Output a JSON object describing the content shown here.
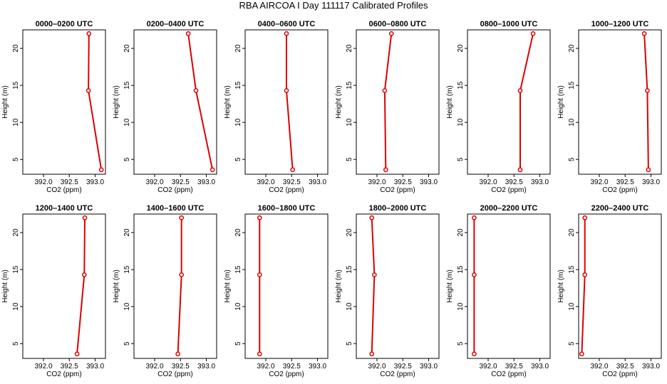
{
  "figure": {
    "title": "RBA AIRCOA I  Day 111117  Calibrated Profiles"
  },
  "chart_data": [
    {
      "type": "line",
      "title": "0000–0200 UTC",
      "xlabel": "CO2 (ppm)",
      "ylabel": "Height (m)",
      "xlim": [
        391.6,
        393.2
      ],
      "ylim": [
        3,
        22.5
      ],
      "xticks": [
        "392.0",
        "392.5",
        "393.0"
      ],
      "yticks": [
        "5",
        "10",
        "15",
        "20"
      ],
      "x": [
        392.88,
        392.87,
        393.12
      ],
      "y": [
        22,
        14.3,
        3.6
      ],
      "color": "#dd0000"
    },
    {
      "type": "line",
      "title": "0200–0400 UTC",
      "xlabel": "CO2 (ppm)",
      "ylabel": "Height (m)",
      "xlim": [
        391.6,
        393.2
      ],
      "ylim": [
        3,
        22.5
      ],
      "xticks": [
        "392.0",
        "392.5",
        "393.0"
      ],
      "yticks": [
        "5",
        "10",
        "15",
        "20"
      ],
      "x": [
        392.65,
        392.8,
        393.12
      ],
      "y": [
        22,
        14.3,
        3.6
      ],
      "color": "#dd0000"
    },
    {
      "type": "line",
      "title": "0400–0600 UTC",
      "xlabel": "CO2 (ppm)",
      "ylabel": "Height (m)",
      "xlim": [
        391.6,
        393.2
      ],
      "ylim": [
        3,
        22.5
      ],
      "xticks": [
        "392.0",
        "392.5",
        "393.0"
      ],
      "yticks": [
        "5",
        "10",
        "15",
        "20"
      ],
      "x": [
        392.4,
        392.4,
        392.52
      ],
      "y": [
        22,
        14.3,
        3.6
      ],
      "color": "#dd0000"
    },
    {
      "type": "line",
      "title": "0600–0800 UTC",
      "xlabel": "CO2 (ppm)",
      "ylabel": "Height (m)",
      "xlim": [
        391.6,
        393.2
      ],
      "ylim": [
        3,
        22.5
      ],
      "xticks": [
        "392.0",
        "392.5",
        "393.0"
      ],
      "yticks": [
        "5",
        "10",
        "15",
        "20"
      ],
      "x": [
        392.28,
        392.15,
        392.17
      ],
      "y": [
        22,
        14.3,
        3.6
      ],
      "color": "#dd0000"
    },
    {
      "type": "line",
      "title": "0800–1000 UTC",
      "xlabel": "CO2 (ppm)",
      "ylabel": "Height (m)",
      "xlim": [
        391.6,
        393.2
      ],
      "ylim": [
        3,
        22.5
      ],
      "xticks": [
        "392.0",
        "392.5",
        "393.0"
      ],
      "yticks": [
        "5",
        "10",
        "15",
        "20"
      ],
      "x": [
        392.87,
        392.62,
        392.62
      ],
      "y": [
        22,
        14.3,
        3.6
      ],
      "color": "#dd0000"
    },
    {
      "type": "line",
      "title": "1000–1200 UTC",
      "xlabel": "CO2 (ppm)",
      "ylabel": "Height (m)",
      "xlim": [
        391.6,
        393.2
      ],
      "ylim": [
        3,
        22.5
      ],
      "xticks": [
        "392.0",
        "392.5",
        "393.0"
      ],
      "yticks": [
        "5",
        "10",
        "15",
        "20"
      ],
      "x": [
        392.87,
        392.93,
        392.95
      ],
      "y": [
        22,
        14.3,
        3.6
      ],
      "color": "#dd0000"
    },
    {
      "type": "line",
      "title": "1200–1400 UTC",
      "xlabel": "CO2 (ppm)",
      "ylabel": "Height (m)",
      "xlim": [
        391.6,
        393.2
      ],
      "ylim": [
        3,
        22.5
      ],
      "xticks": [
        "392.0",
        "392.5",
        "393.0"
      ],
      "yticks": [
        "5",
        "10",
        "15",
        "20"
      ],
      "x": [
        392.8,
        392.79,
        392.65
      ],
      "y": [
        22,
        14.3,
        3.6
      ],
      "color": "#dd0000"
    },
    {
      "type": "line",
      "title": "1400–1600 UTC",
      "xlabel": "CO2 (ppm)",
      "ylabel": "Height (m)",
      "xlim": [
        391.6,
        393.2
      ],
      "ylim": [
        3,
        22.5
      ],
      "xticks": [
        "392.0",
        "392.5",
        "393.0"
      ],
      "yticks": [
        "5",
        "10",
        "15",
        "20"
      ],
      "x": [
        392.52,
        392.52,
        392.45
      ],
      "y": [
        22,
        14.3,
        3.6
      ],
      "color": "#dd0000"
    },
    {
      "type": "line",
      "title": "1600–1800 UTC",
      "xlabel": "CO2 (ppm)",
      "ylabel": "Height (m)",
      "xlim": [
        391.6,
        393.2
      ],
      "ylim": [
        3,
        22.5
      ],
      "xticks": [
        "392.0",
        "392.5",
        "393.0"
      ],
      "yticks": [
        "5",
        "10",
        "15",
        "20"
      ],
      "x": [
        391.88,
        391.88,
        391.88
      ],
      "y": [
        22,
        14.3,
        3.6
      ],
      "color": "#dd0000"
    },
    {
      "type": "line",
      "title": "1800–2000 UTC",
      "xlabel": "CO2 (ppm)",
      "ylabel": "Height (m)",
      "xlim": [
        391.6,
        393.2
      ],
      "ylim": [
        3,
        22.5
      ],
      "xticks": [
        "392.0",
        "392.5",
        "393.0"
      ],
      "yticks": [
        "5",
        "10",
        "15",
        "20"
      ],
      "x": [
        391.9,
        391.95,
        391.9
      ],
      "y": [
        22,
        14.3,
        3.6
      ],
      "color": "#dd0000"
    },
    {
      "type": "line",
      "title": "2000–2200 UTC",
      "xlabel": "CO2 (ppm)",
      "ylabel": "Height (m)",
      "xlim": [
        391.6,
        393.2
      ],
      "ylim": [
        3,
        22.5
      ],
      "xticks": [
        "392.0",
        "392.5",
        "393.0"
      ],
      "yticks": [
        "5",
        "10",
        "15",
        "20"
      ],
      "x": [
        391.73,
        391.73,
        391.73
      ],
      "y": [
        22,
        14.3,
        3.6
      ],
      "color": "#dd0000"
    },
    {
      "type": "line",
      "title": "2200–2400 UTC",
      "xlabel": "CO2 (ppm)",
      "ylabel": "Height (m)",
      "xlim": [
        391.6,
        393.2
      ],
      "ylim": [
        3,
        22.5
      ],
      "xticks": [
        "392.0",
        "392.5",
        "393.0"
      ],
      "yticks": [
        "5",
        "10",
        "15",
        "20"
      ],
      "x": [
        391.72,
        391.72,
        391.66
      ],
      "y": [
        22,
        14.3,
        3.6
      ],
      "color": "#dd0000"
    }
  ]
}
